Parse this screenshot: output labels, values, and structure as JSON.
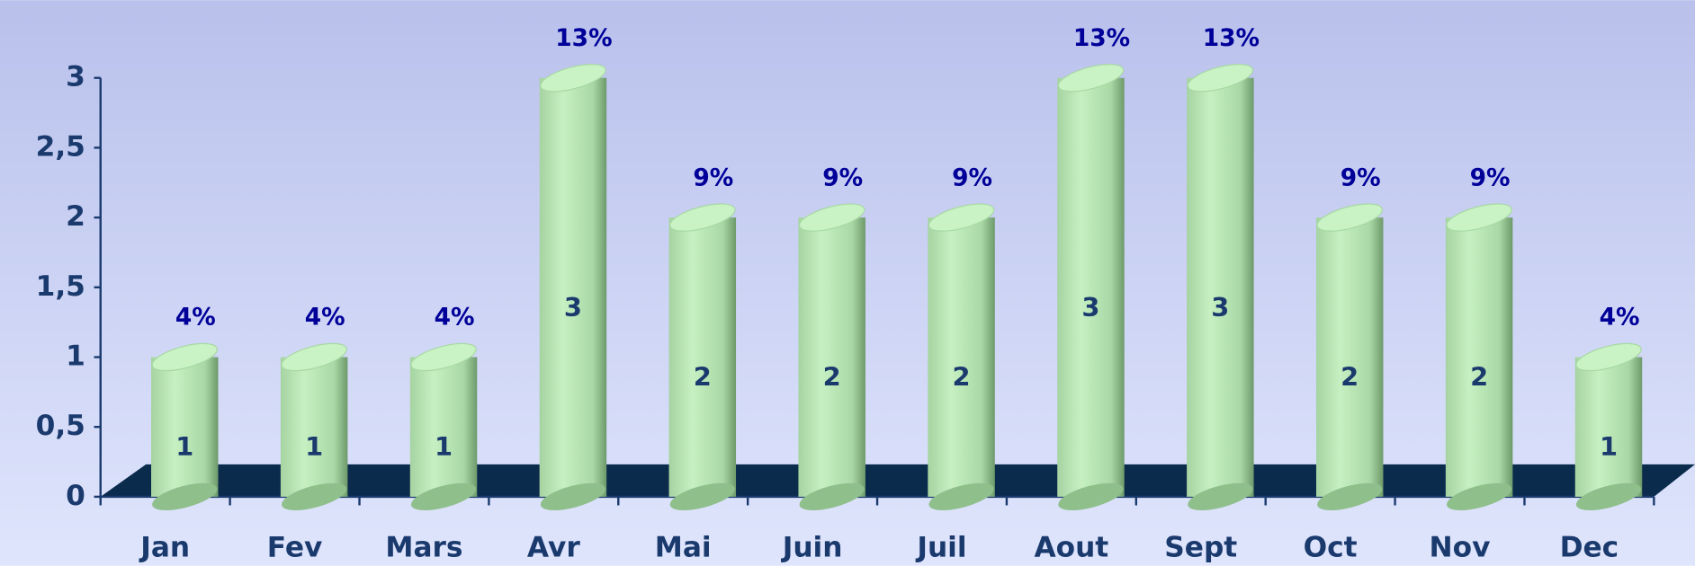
{
  "chart_data": {
    "type": "bar",
    "categories": [
      "Jan",
      "Fev",
      "Mars",
      "Avr",
      "Mai",
      "Juin",
      "Juil",
      "Aout",
      "Sept",
      "Oct",
      "Nov",
      "Dec"
    ],
    "values": [
      1,
      1,
      1,
      3,
      2,
      2,
      2,
      3,
      3,
      2,
      2,
      1
    ],
    "share_labels": [
      "4%",
      "4%",
      "4%",
      "13%",
      "9%",
      "9%",
      "9%",
      "13%",
      "13%",
      "9%",
      "9%",
      "4%"
    ],
    "color": "#b8e8b4",
    "ylim": [
      0,
      3
    ],
    "yticks": [
      0,
      {
        "value": 0.5,
        "label": "0,5"
      },
      1,
      {
        "value": 1.5,
        "label": "1,5"
      },
      2,
      {
        "value": 2.5,
        "label": "2,5"
      },
      3
    ]
  }
}
